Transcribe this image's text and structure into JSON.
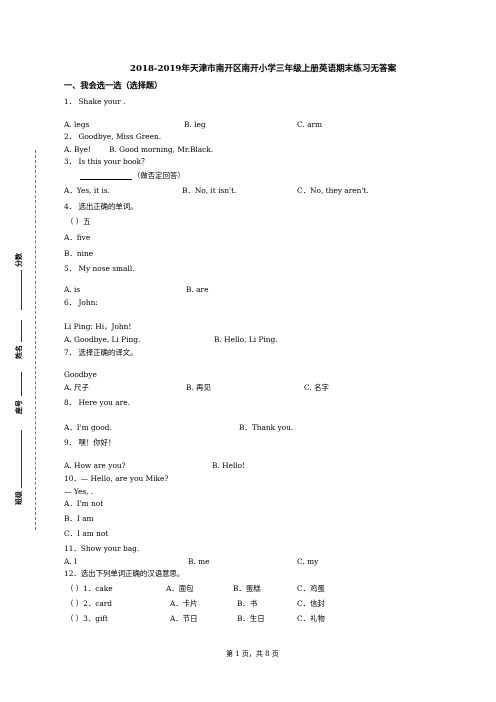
{
  "title": "2018-2019年天津市南开区南开小学三年级上册英语期末练习无答案",
  "section1": "一、我会选一选（选择题）",
  "side_labels": {
    "score": "分数",
    "name": "姓名",
    "seat": "座号",
    "class": "班级"
  },
  "lines": [
    "1． Shake your                .",
    "A. legs",
    "B. leg",
    "C. arm",
    "2． Goodbye, Miss Green.",
    "A. Bye!",
    "B. Good morning, Mr.Black.",
    "3． Is this your book？",
    "（做否定回答）",
    "A．Yes, it is.",
    "B．No, it isn't.",
    "C．No, they aren't.",
    "4． 选出正确的单词。",
    "（        ）五",
    "A．five",
    "B．nine",
    "5． My nose                small.",
    "A. is",
    "B. are",
    "6． John:",
    "Li Ping: Hi，John!",
    "A. Goodbye, Li Ping.",
    "B. Hello, Li Ping.",
    "7． 选择正确的译文。",
    "Goodbye",
    "A. 尺子",
    "B. 再见",
    "C. 名字",
    "8．       Here you are.",
    "A．I'm good.",
    "B．Thank you.",
    "9． 嘿！你好！",
    "A. How are you?",
    "B. Hello!",
    "10．—    Hello, are you Mike?",
    "—    Yes,              .",
    "A．I'm not",
    "B．I am",
    "C．I am not",
    "11．Show                  your bag.",
    "A. I",
    "B. me",
    "C. my",
    "12．选出下列单词正确的汉语意思。",
    "（        ）1．cake",
    "A．面包",
    "B．蛋糕",
    "C．鸡蛋",
    "（        ）2．card",
    "A．卡片",
    "B．书",
    "C．信封",
    "（        ）3．gift",
    "A．节日",
    "B．生日",
    "C．礼物"
  ],
  "footer": "第 1 页，共 8 页"
}
